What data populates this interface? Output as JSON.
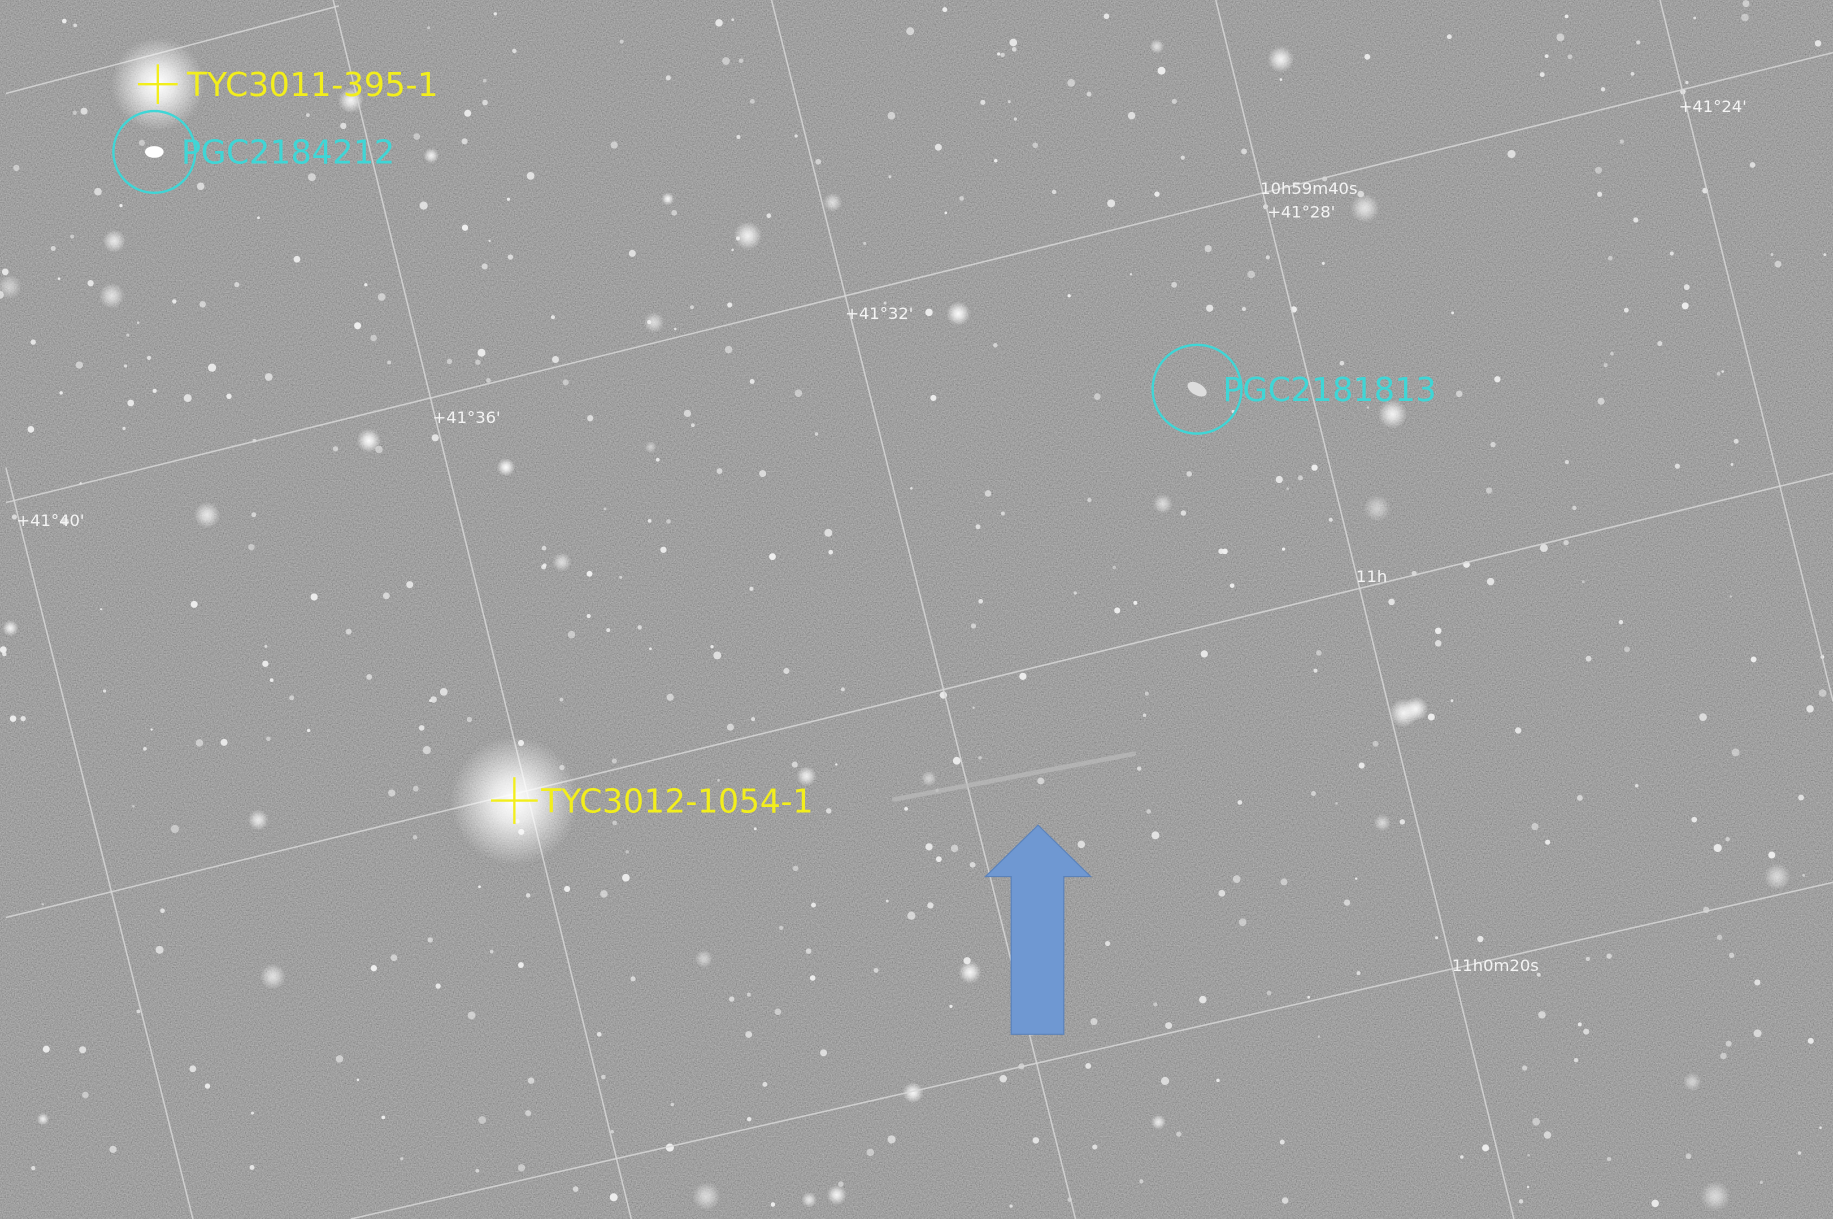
{
  "annotations": {
    "stars": [
      {
        "label": "TYC3011-395-1"
      },
      {
        "label": "TYC3012-1054-1"
      }
    ],
    "galaxies": [
      {
        "label": "PGC2184212"
      },
      {
        "label": "PGC2181813"
      }
    ]
  },
  "grid_labels": [
    "+41°24'",
    "10h59m40s",
    "+41°28'",
    "+41°32'",
    "+41°36'",
    "+41°40'",
    "11h",
    "11h0m20s"
  ]
}
